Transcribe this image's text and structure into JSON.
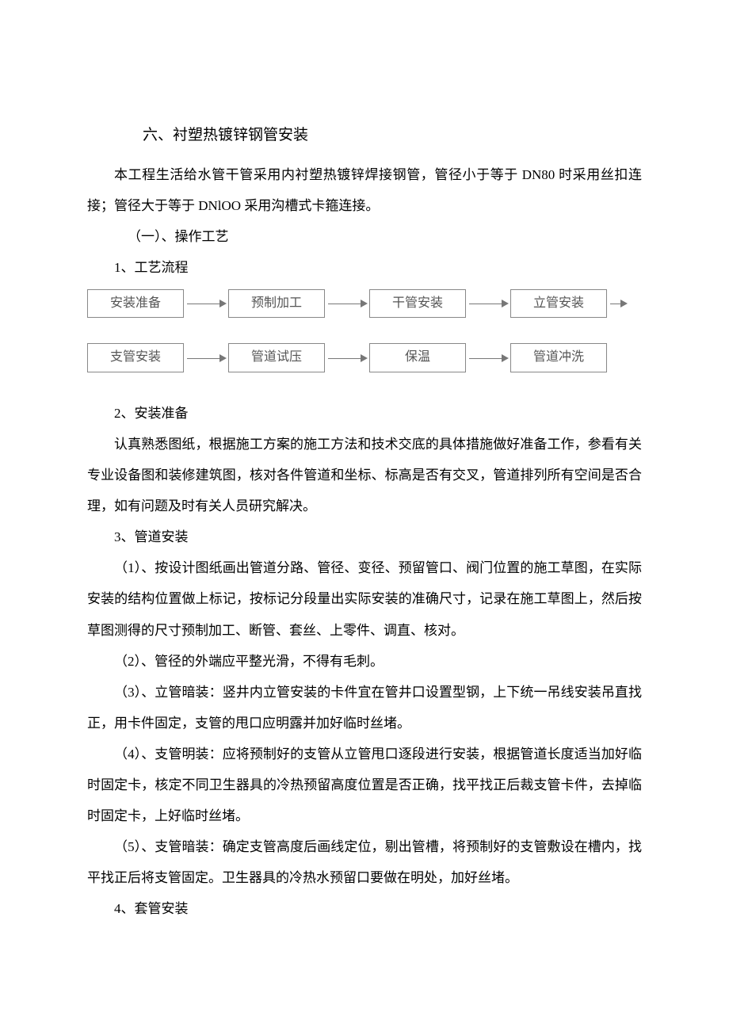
{
  "title": "六、衬塑热镀锌钢管安装",
  "intro": "本工程生活给水管干管采用内衬塑热镀锌焊接钢管，管径小于等于 DN80 时采用丝扣连接；管径大于等于 DNlOO 采用沟槽式卡箍连接。",
  "sec1": "（一）、操作工艺",
  "item1": "1、工艺流程",
  "flow": {
    "row1": [
      "安装准备",
      "预制加工",
      "干管安装",
      "立管安装"
    ],
    "row2": [
      "支管安装",
      "管道试压",
      "保温",
      "管道冲洗"
    ],
    "box_border_color": "#888888",
    "box_text_color": "#555555",
    "arrow_color": "#777777"
  },
  "item2": "2、安装准备",
  "p2": "认真熟悉图纸，根据施工方案的施工方法和技术交底的具体措施做好准备工作，参看有关专业设备图和装修建筑图，核对各件管道和坐标、标高是否有交叉，管道排列所有空间是否合理，如有问题及时有关人员研究解决。",
  "item3": "3、管道安装",
  "p3_1": "（1）、按设计图纸画出管道分路、管径、变径、预留管口、阀门位置的施工草图，在实际安装的结构位置做上标记，按标记分段量出实际安装的准确尺寸，记录在施工草图上，然后按草图测得的尺寸预制加工、断管、套丝、上零件、调直、核对。",
  "p3_2": "（2）、管径的外端应平整光滑，不得有毛刺。",
  "p3_3": "（3）、立管暗装：竖井内立管安装的卡件宜在管井口设置型钢，上下统一吊线安装吊直找正，用卡件固定，支管的甩口应明露并加好临时丝堵。",
  "p3_4": "（4）、支管明装：应将预制好的支管从立管甩口逐段进行安装，根据管道长度适当加好临时固定卡，核定不同卫生器具的冷热预留高度位置是否正确，找平找正后裁支管卡件，去掉临时固定卡，上好临时丝堵。",
  "p3_5": "（5）、支管暗装：确定支管高度后画线定位，剔出管槽，将预制好的支管敷设在槽内，找平找正后将支管固定。卫生器具的冷热水预留口要做在明处，加好丝堵。",
  "item4": "4、套管安装"
}
